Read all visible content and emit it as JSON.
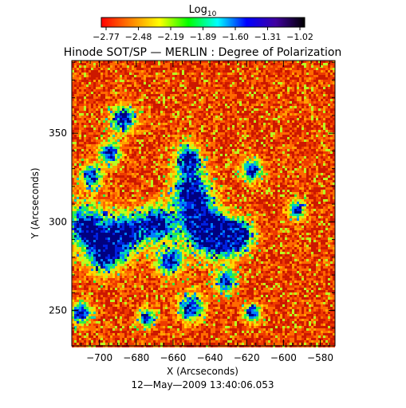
{
  "colorbar": {
    "label_main": "Log",
    "label_sub": "10",
    "ticks": [
      "-2.77",
      "-2.48",
      "-2.19",
      "-1.89",
      "-1.60",
      "-1.31",
      "-1.02"
    ],
    "colors": [
      "#ff0000",
      "#ff8000",
      "#ffff00",
      "#00ff00",
      "#00ffff",
      "#0000ff",
      "#4000a0",
      "#000000"
    ]
  },
  "title": "Hinode SOT/SP — MERLIN : Degree of Polarization",
  "x_axis": {
    "label": "X (Arcseconds)",
    "ticks": [
      {
        "label": "−700",
        "value": -700
      },
      {
        "label": "−680",
        "value": -680
      },
      {
        "label": "−660",
        "value": -660
      },
      {
        "label": "−640",
        "value": -640
      },
      {
        "label": "−620",
        "value": -620
      },
      {
        "label": "−600",
        "value": -600
      },
      {
        "label": "−580",
        "value": -580
      }
    ],
    "range": [
      -715,
      -572
    ]
  },
  "y_axis": {
    "label": "Y (Arcseconds)",
    "ticks": [
      {
        "label": "250",
        "value": 250
      },
      {
        "label": "300",
        "value": 300
      },
      {
        "label": "350",
        "value": 350
      }
    ],
    "range": [
      230,
      391
    ]
  },
  "timestamp": "12—May—2009 13:40:06.053",
  "map": {
    "palette": [
      "#cc1800",
      "#ee3a00",
      "#ff6a00",
      "#ffa000",
      "#ffd800",
      "#b8ff20",
      "#30ee40",
      "#00d0c0",
      "#0080ff",
      "#0020e0",
      "#000080"
    ]
  }
}
